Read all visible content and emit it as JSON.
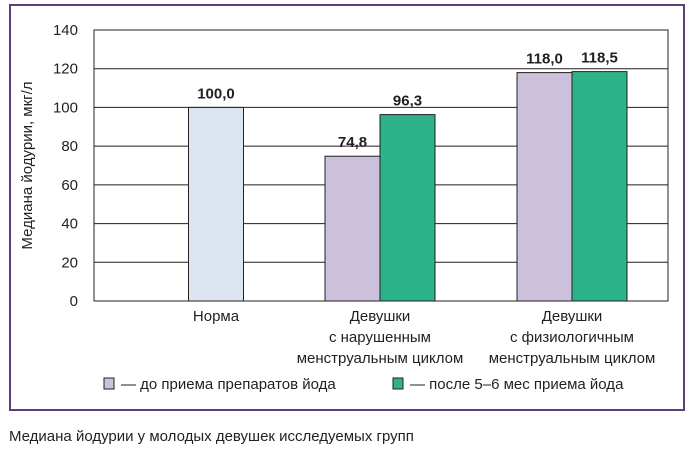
{
  "caption": "Медиана йодурии у молодых девушек исследуемых групп",
  "colors": {
    "frame": "#5e3f7a",
    "norm": "#dce6f1",
    "before": "#ccc0da",
    "after": "#2db38a",
    "grid": "#231f20"
  },
  "chart_data": {
    "type": "bar",
    "ylabel": "Медиана йодурии, мкг/л",
    "xlabel": "",
    "ylim": [
      0,
      140
    ],
    "yticks": [
      0,
      20,
      40,
      60,
      80,
      100,
      120,
      140
    ],
    "grid": true,
    "legend_position": "bottom",
    "categories": [
      [
        "Норма"
      ],
      [
        "Девушки",
        "с нарушенным",
        "менструальным циклом"
      ],
      [
        "Девушки",
        "с физиологичным",
        "менструальным циклом"
      ]
    ],
    "norm_value": 100.0,
    "norm_label": "100,0",
    "series": [
      {
        "name": "— до приема препаратов йода",
        "values": [
          null,
          74.8,
          118.0
        ],
        "labels": [
          "",
          "74,8",
          "118,0"
        ]
      },
      {
        "name": "— после 5–6 мес приема йода",
        "values": [
          null,
          96.3,
          118.5
        ],
        "labels": [
          "",
          "96,3",
          "118,5"
        ]
      }
    ]
  }
}
